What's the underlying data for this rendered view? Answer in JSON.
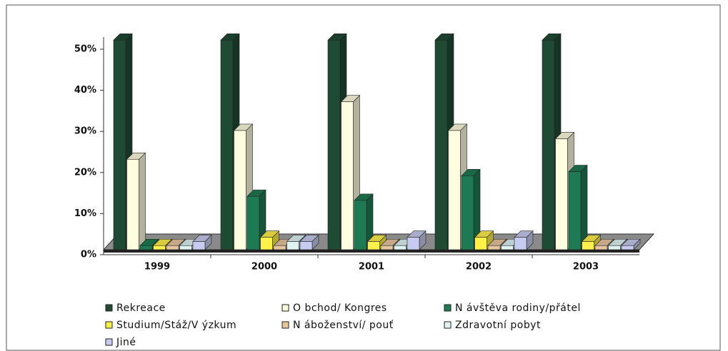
{
  "chart_data": {
    "type": "bar3d",
    "categories": [
      "1999",
      "2000",
      "2001",
      "2002",
      "2003"
    ],
    "series": [
      {
        "name": "Rekreace",
        "color": "#1f4a33",
        "values": [
          51,
          51,
          51,
          51,
          51
        ]
      },
      {
        "name": "O bchod/ Kongres",
        "color": "#fffde0",
        "values": [
          22,
          29,
          36,
          29,
          27
        ]
      },
      {
        "name": "N ávštěva rodiny/přátel",
        "color": "#1e7a52",
        "values": [
          1,
          13,
          12,
          18,
          19
        ]
      },
      {
        "name": "Studium/Stáž/V ýzkum",
        "color": "#fff04a",
        "values": [
          1,
          3,
          2,
          3,
          2
        ]
      },
      {
        "name": "N áboženství/ pouť",
        "color": "#e6c6a0",
        "values": [
          1,
          1,
          1,
          1,
          1
        ]
      },
      {
        "name": "Zdravotní pobyt",
        "color": "#dff3f3",
        "values": [
          1,
          2,
          1,
          1,
          1
        ]
      },
      {
        "name": "Jiné",
        "color": "#c6cbef",
        "values": [
          2,
          2,
          3,
          3,
          1
        ]
      }
    ],
    "ylim": [
      0,
      50
    ],
    "yticks": [
      {
        "value": 0,
        "label": "0%"
      },
      {
        "value": 10,
        "label": "10%"
      },
      {
        "value": 20,
        "label": "20%"
      },
      {
        "value": 30,
        "label": "30%"
      },
      {
        "value": 40,
        "label": "40%"
      },
      {
        "value": 50,
        "label": "50%"
      }
    ]
  }
}
